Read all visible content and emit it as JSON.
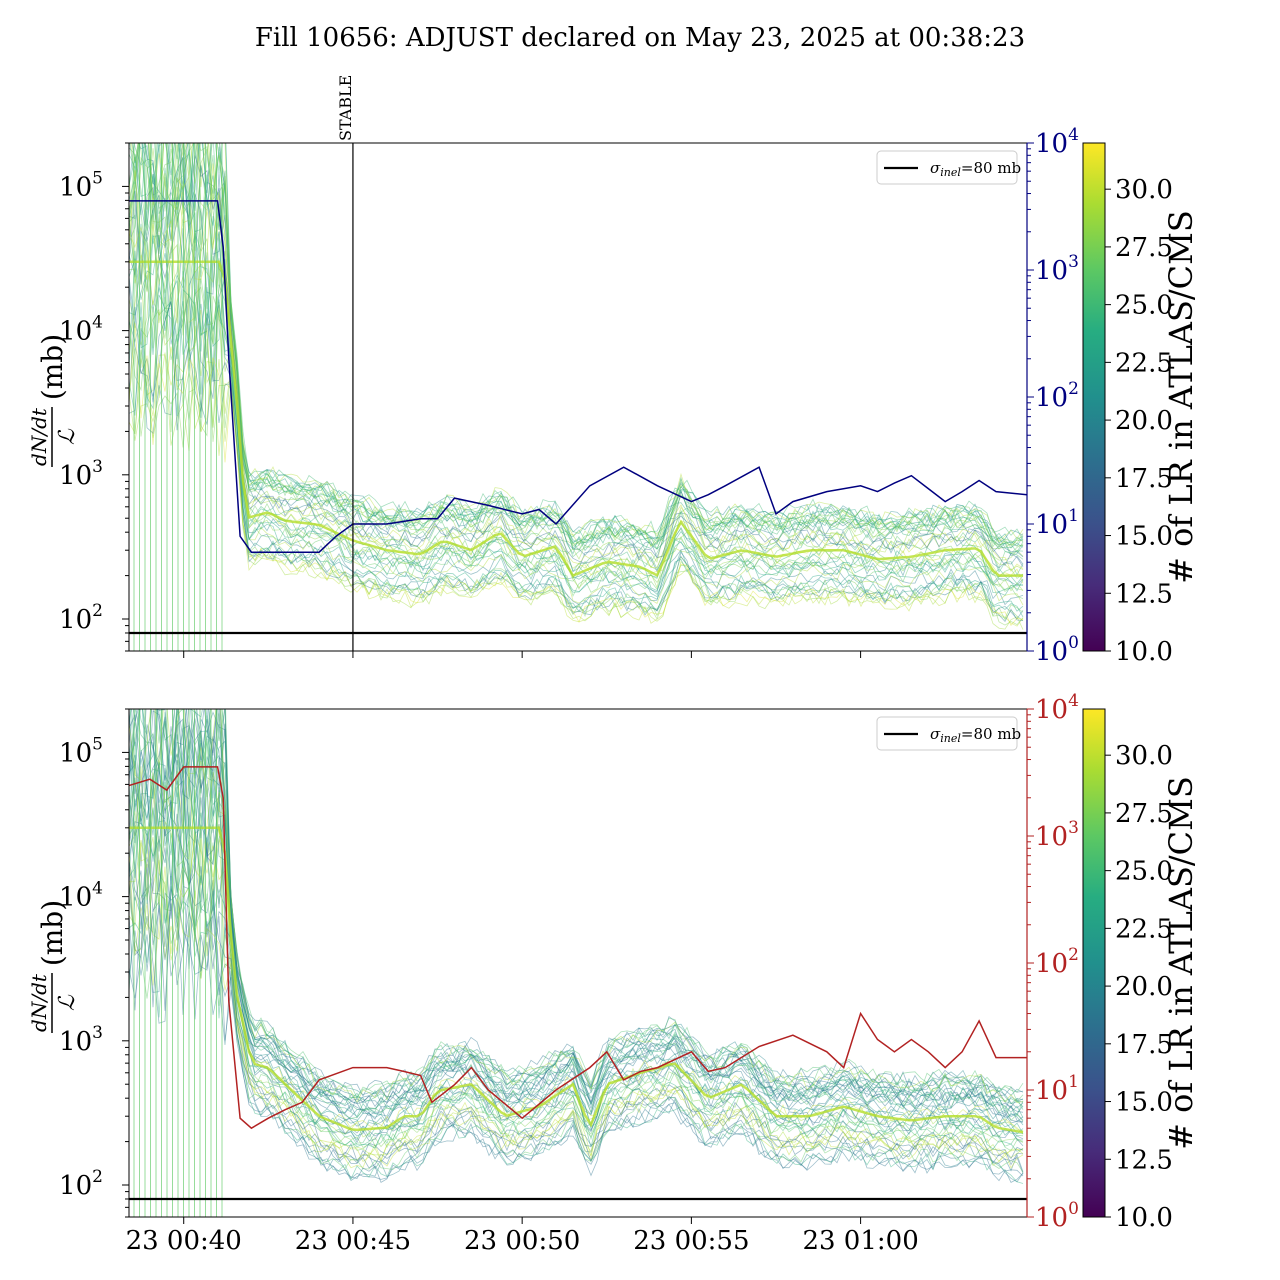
{
  "figure": {
    "title": "Fill 10656: ADJUST declared on May 23, 2025 at 00:38:23"
  },
  "colors": {
    "top_secondary": "#00007f",
    "bottom_secondary": "#b22222",
    "sigma_line": "#000000",
    "stable_line": "#000000"
  },
  "labels": {
    "ylabel_numerator": "dN/dt",
    "ylabel_denominator": "ℒ",
    "ylabel_unit": "(mb)",
    "colorbar_label": "# of LR in ATLAS/CMS",
    "stable_marker": "STABLE",
    "legend_sigma_symbol": "σ",
    "legend_sigma_sub": "inel",
    "legend_sigma_value": "=80 mb"
  },
  "chart_data": [
    {
      "type": "line",
      "panel": "top",
      "yscale": "log",
      "ylim": [
        60,
        200000
      ],
      "xlim": [
        "00:38:23",
        "01:04:55"
      ],
      "yticks_primary": [
        {
          "base": "10",
          "exp": "2"
        },
        {
          "base": "10",
          "exp": "3"
        },
        {
          "base": "10",
          "exp": "4"
        },
        {
          "base": "10",
          "exp": "5"
        }
      ],
      "secondary_axis": {
        "scale": "log",
        "range": [
          1,
          10000
        ],
        "ticks": [
          {
            "base": "10",
            "exp": "0"
          },
          {
            "base": "10",
            "exp": "1"
          },
          {
            "base": "10",
            "exp": "2"
          },
          {
            "base": "10",
            "exp": "3"
          },
          {
            "base": "10",
            "exp": "4"
          }
        ]
      },
      "xticks": [
        "23 00:40",
        "23 00:45",
        "23 00:50",
        "23 00:55",
        "23 01:00"
      ],
      "show_xticklabels": false,
      "reference_line": {
        "value": 80,
        "label": "σinel=80 mb"
      },
      "vertical_marker": {
        "time": "00:45:00",
        "label": "STABLE"
      },
      "band_median": [
        [
          "00:38:23",
          30000
        ],
        [
          "00:41:10",
          30000
        ],
        [
          "00:41:35",
          3000
        ],
        [
          "00:41:50",
          500
        ],
        [
          "00:42:30",
          550
        ],
        [
          "00:43:00",
          480
        ],
        [
          "00:44:00",
          450
        ],
        [
          "00:45:00",
          350
        ],
        [
          "00:46:00",
          300
        ],
        [
          "00:47:00",
          280
        ],
        [
          "00:47:40",
          350
        ],
        [
          "00:48:30",
          300
        ],
        [
          "00:49:20",
          400
        ],
        [
          "00:50:00",
          270
        ],
        [
          "00:51:00",
          320
        ],
        [
          "00:51:30",
          200
        ],
        [
          "00:52:30",
          250
        ],
        [
          "00:53:30",
          230
        ],
        [
          "00:54:00",
          200
        ],
        [
          "00:54:40",
          480
        ],
        [
          "00:55:30",
          260
        ],
        [
          "00:56:30",
          300
        ],
        [
          "00:57:30",
          270
        ],
        [
          "00:58:30",
          300
        ],
        [
          "00:59:30",
          300
        ],
        [
          "01:00:30",
          260
        ],
        [
          "01:01:30",
          270
        ],
        [
          "01:02:30",
          300
        ],
        [
          "01:03:30",
          310
        ],
        [
          "01:04:00",
          200
        ],
        [
          "01:04:55",
          200
        ]
      ],
      "secondary_series": [
        [
          "00:38:23",
          3500
        ],
        [
          "00:41:00",
          3500
        ],
        [
          "00:41:10",
          1500
        ],
        [
          "00:41:20",
          200
        ],
        [
          "00:41:40",
          8
        ],
        [
          "00:42:00",
          6
        ],
        [
          "00:43:00",
          6
        ],
        [
          "00:44:00",
          6
        ],
        [
          "00:44:30",
          8
        ],
        [
          "00:45:00",
          10
        ],
        [
          "00:46:00",
          10
        ],
        [
          "00:47:00",
          11
        ],
        [
          "00:47:30",
          11
        ],
        [
          "00:48:00",
          16
        ],
        [
          "00:49:00",
          14
        ],
        [
          "00:50:00",
          12
        ],
        [
          "00:50:30",
          13
        ],
        [
          "00:51:00",
          10
        ],
        [
          "00:52:00",
          20
        ],
        [
          "00:53:00",
          28
        ],
        [
          "00:54:00",
          20
        ],
        [
          "00:55:00",
          15
        ],
        [
          "00:55:30",
          17
        ],
        [
          "00:56:00",
          20
        ],
        [
          "00:57:00",
          28
        ],
        [
          "00:57:30",
          12
        ],
        [
          "00:58:00",
          15
        ],
        [
          "00:59:00",
          18
        ],
        [
          "01:00:00",
          20
        ],
        [
          "01:00:30",
          18
        ],
        [
          "01:01:00",
          21
        ],
        [
          "01:01:30",
          24
        ],
        [
          "01:02:00",
          19
        ],
        [
          "01:02:30",
          15
        ],
        [
          "01:03:00",
          18
        ],
        [
          "01:03:30",
          22
        ],
        [
          "01:04:00",
          18
        ],
        [
          "01:04:55",
          17
        ]
      ],
      "colorbar": {
        "range": [
          10,
          32
        ],
        "ticks": [
          "10.0",
          "12.5",
          "15.0",
          "17.5",
          "20.0",
          "22.5",
          "25.0",
          "27.5",
          "30.0"
        ],
        "cmap": "viridis"
      }
    },
    {
      "type": "line",
      "panel": "bottom",
      "yscale": "log",
      "ylim": [
        60,
        200000
      ],
      "xlim": [
        "00:38:23",
        "01:04:55"
      ],
      "yticks_primary": [
        {
          "base": "10",
          "exp": "2"
        },
        {
          "base": "10",
          "exp": "3"
        },
        {
          "base": "10",
          "exp": "4"
        },
        {
          "base": "10",
          "exp": "5"
        }
      ],
      "secondary_axis": {
        "scale": "log",
        "range": [
          1,
          10000
        ],
        "ticks": [
          {
            "base": "10",
            "exp": "0"
          },
          {
            "base": "10",
            "exp": "1"
          },
          {
            "base": "10",
            "exp": "2"
          },
          {
            "base": "10",
            "exp": "3"
          },
          {
            "base": "10",
            "exp": "4"
          }
        ]
      },
      "xticks": [
        "23 00:40",
        "23 00:45",
        "23 00:50",
        "23 00:55",
        "23 01:00"
      ],
      "show_xticklabels": true,
      "reference_line": {
        "value": 80,
        "label": "σinel=80 mb"
      },
      "band_median": [
        [
          "00:38:23",
          30000
        ],
        [
          "00:41:10",
          30000
        ],
        [
          "00:41:30",
          2500
        ],
        [
          "00:42:00",
          700
        ],
        [
          "00:42:30",
          650
        ],
        [
          "00:43:00",
          500
        ],
        [
          "00:44:00",
          300
        ],
        [
          "00:45:00",
          240
        ],
        [
          "00:46:00",
          250
        ],
        [
          "00:46:30",
          300
        ],
        [
          "00:47:00",
          300
        ],
        [
          "00:47:30",
          450
        ],
        [
          "00:48:30",
          500
        ],
        [
          "00:49:30",
          300
        ],
        [
          "00:50:30",
          350
        ],
        [
          "00:51:30",
          500
        ],
        [
          "00:52:00",
          250
        ],
        [
          "00:52:30",
          500
        ],
        [
          "00:53:30",
          600
        ],
        [
          "00:54:30",
          700
        ],
        [
          "00:55:30",
          400
        ],
        [
          "00:56:30",
          500
        ],
        [
          "00:57:30",
          300
        ],
        [
          "00:58:30",
          300
        ],
        [
          "00:59:30",
          350
        ],
        [
          "01:00:30",
          300
        ],
        [
          "01:01:30",
          280
        ],
        [
          "01:02:30",
          300
        ],
        [
          "01:03:30",
          300
        ],
        [
          "01:04:00",
          250
        ],
        [
          "01:04:55",
          230
        ]
      ],
      "secondary_series": [
        [
          "00:38:23",
          2500
        ],
        [
          "00:39:00",
          2800
        ],
        [
          "00:39:30",
          2300
        ],
        [
          "00:40:00",
          3500
        ],
        [
          "00:41:00",
          3500
        ],
        [
          "00:41:10",
          2000
        ],
        [
          "00:41:20",
          50
        ],
        [
          "00:41:40",
          6
        ],
        [
          "00:42:00",
          5
        ],
        [
          "00:42:30",
          6
        ],
        [
          "00:43:00",
          7
        ],
        [
          "00:43:30",
          8
        ],
        [
          "00:44:00",
          12
        ],
        [
          "00:45:00",
          15
        ],
        [
          "00:46:00",
          15
        ],
        [
          "00:46:30",
          14
        ],
        [
          "00:47:00",
          13
        ],
        [
          "00:47:20",
          8
        ],
        [
          "00:48:00",
          11
        ],
        [
          "00:48:30",
          15
        ],
        [
          "00:49:00",
          10
        ],
        [
          "00:50:00",
          6
        ],
        [
          "00:51:00",
          10
        ],
        [
          "00:52:00",
          15
        ],
        [
          "00:52:30",
          20
        ],
        [
          "00:53:00",
          12
        ],
        [
          "00:53:30",
          14
        ],
        [
          "00:54:00",
          15
        ],
        [
          "00:55:00",
          20
        ],
        [
          "00:55:30",
          14
        ],
        [
          "00:56:00",
          15
        ],
        [
          "00:57:00",
          22
        ],
        [
          "00:58:00",
          27
        ],
        [
          "00:59:00",
          20
        ],
        [
          "00:59:30",
          15
        ],
        [
          "01:00:00",
          40
        ],
        [
          "01:00:30",
          25
        ],
        [
          "01:01:00",
          20
        ],
        [
          "01:01:30",
          25
        ],
        [
          "01:02:00",
          20
        ],
        [
          "01:02:30",
          15
        ],
        [
          "01:03:00",
          20
        ],
        [
          "01:03:30",
          35
        ],
        [
          "01:04:00",
          18
        ],
        [
          "01:04:55",
          18
        ]
      ],
      "colorbar": {
        "range": [
          10,
          32
        ],
        "ticks": [
          "10.0",
          "12.5",
          "15.0",
          "17.5",
          "20.0",
          "22.5",
          "25.0",
          "27.5",
          "30.0"
        ],
        "cmap": "viridis"
      }
    }
  ]
}
